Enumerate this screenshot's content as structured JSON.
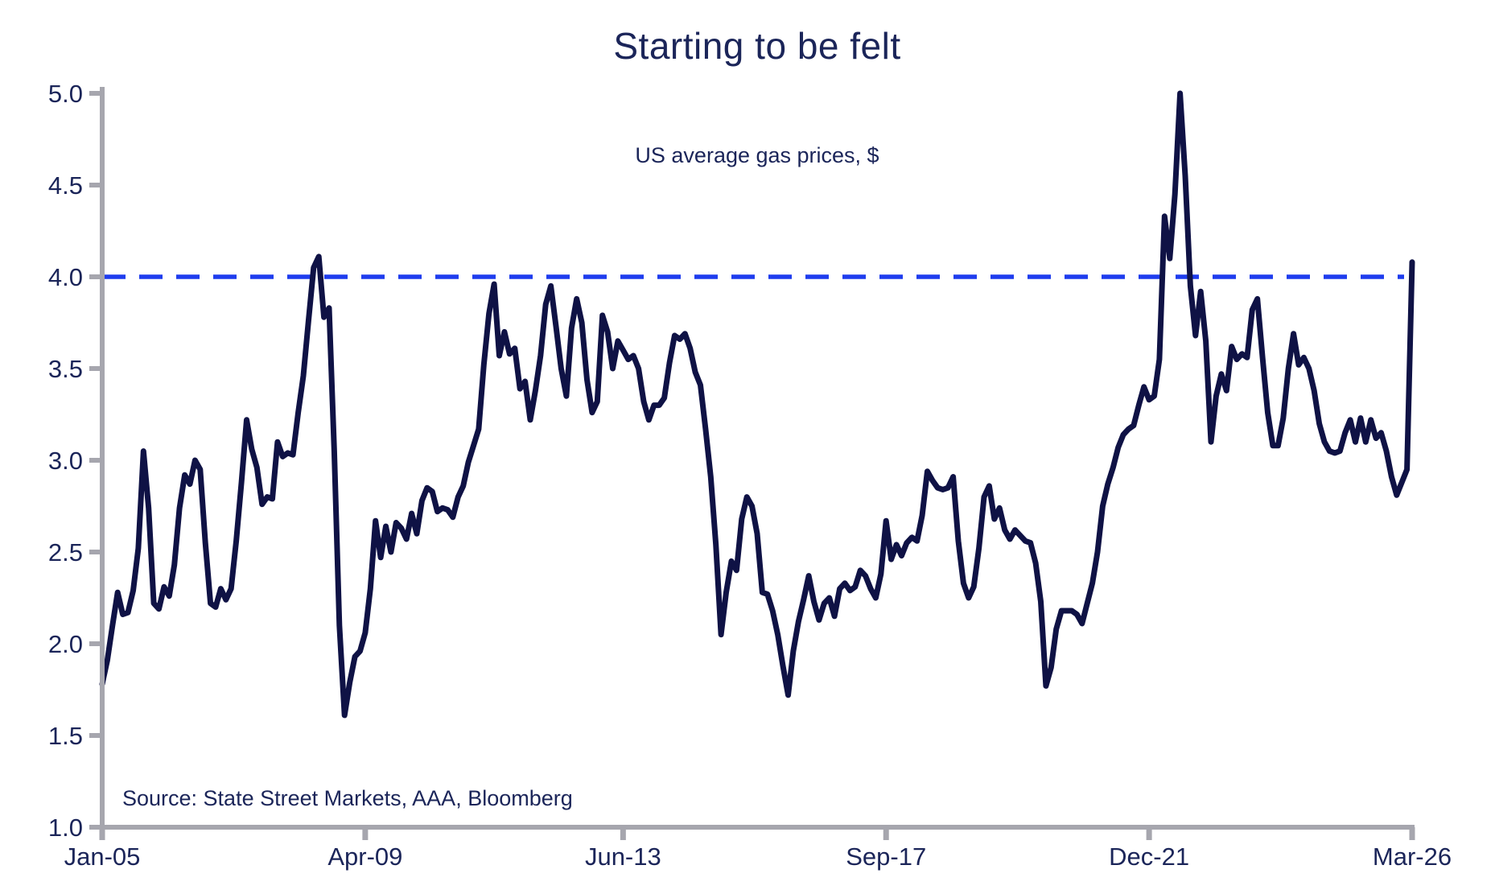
{
  "chart_data": {
    "type": "line",
    "title": "Starting to be felt",
    "subtitle": "US average gas prices, $",
    "source_note": "Source: State Street Markets, AAA, Bloomberg",
    "grid": "off",
    "legend": "none",
    "x_axis": {
      "start": "Jan-2005",
      "end": "Mar-2026",
      "frequency": "monthly",
      "tick_labels": [
        "Jan-05",
        "Apr-09",
        "Jun-13",
        "Sep-17",
        "Dec-21",
        "Mar-26"
      ],
      "tick_month_index": [
        0,
        51,
        101,
        152,
        203,
        254
      ]
    },
    "y_axis": {
      "min": 1.0,
      "max": 5.0,
      "tick_step": 0.5,
      "tick_labels": [
        "1.0",
        "1.5",
        "2.0",
        "2.5",
        "3.0",
        "3.5",
        "4.0",
        "4.5",
        "5.0"
      ]
    },
    "reference_line": {
      "value": 4.0,
      "style": "dashed"
    },
    "series": [
      {
        "name": "US average gas price, $ per gallon",
        "start": "2005-01",
        "values": [
          1.78,
          1.91,
          2.1,
          2.28,
          2.16,
          2.17,
          2.29,
          2.52,
          3.05,
          2.74,
          2.22,
          2.19,
          2.31,
          2.26,
          2.43,
          2.74,
          2.92,
          2.87,
          3.0,
          2.95,
          2.55,
          2.22,
          2.2,
          2.3,
          2.24,
          2.3,
          2.56,
          2.88,
          3.22,
          3.06,
          2.96,
          2.76,
          2.8,
          2.79,
          3.1,
          3.02,
          3.04,
          3.03,
          3.26,
          3.46,
          3.76,
          4.05,
          4.11,
          3.78,
          3.83,
          3.05,
          2.1,
          1.61,
          1.79,
          1.93,
          1.96,
          2.06,
          2.3,
          2.67,
          2.47,
          2.64,
          2.5,
          2.66,
          2.63,
          2.57,
          2.71,
          2.6,
          2.78,
          2.85,
          2.83,
          2.72,
          2.74,
          2.73,
          2.69,
          2.8,
          2.86,
          2.99,
          3.08,
          3.17,
          3.52,
          3.8,
          3.96,
          3.57,
          3.7,
          3.58,
          3.61,
          3.39,
          3.43,
          3.22,
          3.38,
          3.57,
          3.85,
          3.95,
          3.73,
          3.5,
          3.35,
          3.72,
          3.88,
          3.75,
          3.44,
          3.26,
          3.32,
          3.79,
          3.7,
          3.5,
          3.65,
          3.6,
          3.55,
          3.57,
          3.5,
          3.32,
          3.22,
          3.3,
          3.3,
          3.34,
          3.53,
          3.68,
          3.66,
          3.69,
          3.61,
          3.48,
          3.41,
          3.17,
          2.91,
          2.54,
          2.05,
          2.28,
          2.45,
          2.4,
          2.68,
          2.8,
          2.75,
          2.6,
          2.28,
          2.27,
          2.18,
          2.05,
          1.88,
          1.72,
          1.96,
          2.12,
          2.24,
          2.37,
          2.23,
          2.13,
          2.22,
          2.25,
          2.15,
          2.3,
          2.33,
          2.29,
          2.31,
          2.4,
          2.37,
          2.3,
          2.25,
          2.38,
          2.67,
          2.46,
          2.54,
          2.48,
          2.55,
          2.58,
          2.56,
          2.7,
          2.94,
          2.89,
          2.85,
          2.84,
          2.85,
          2.91,
          2.56,
          2.33,
          2.25,
          2.31,
          2.52,
          2.8,
          2.86,
          2.68,
          2.74,
          2.62,
          2.57,
          2.62,
          2.59,
          2.56,
          2.55,
          2.44,
          2.23,
          1.77,
          1.87,
          2.08,
          2.18,
          2.18,
          2.18,
          2.16,
          2.11,
          2.22,
          2.33,
          2.5,
          2.75,
          2.87,
          2.96,
          3.07,
          3.14,
          3.17,
          3.19,
          3.3,
          3.4,
          3.33,
          3.35,
          3.55,
          4.33,
          4.1,
          4.45,
          5.0,
          4.55,
          3.95,
          3.68,
          3.92,
          3.65,
          3.1,
          3.35,
          3.47,
          3.38,
          3.62,
          3.55,
          3.58,
          3.56,
          3.82,
          3.88,
          3.56,
          3.26,
          3.08,
          3.08,
          3.23,
          3.5,
          3.69,
          3.52,
          3.56,
          3.5,
          3.38,
          3.2,
          3.1,
          3.05,
          3.04,
          3.05,
          3.15,
          3.22,
          3.1,
          3.23,
          3.1,
          3.22,
          3.12,
          3.15,
          3.05,
          2.91,
          2.81,
          2.88,
          2.95,
          4.08
        ]
      }
    ],
    "colors": {
      "series_line": "#0f1245",
      "reference_line": "#1e3cee",
      "axis": "#a6a6ae",
      "text": "#1b2559",
      "background": "#ffffff"
    }
  }
}
